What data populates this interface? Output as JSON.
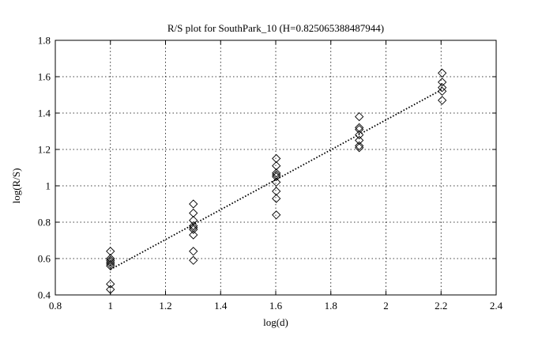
{
  "chart_data": {
    "type": "scatter",
    "title": "R/S plot for SouthPark_10 (H=0.825065388487944)",
    "xlabel": "log(d)",
    "ylabel": "log(R/S)",
    "xlim": [
      0.8,
      2.4
    ],
    "ylim": [
      0.4,
      1.8
    ],
    "xticks": [
      0.8,
      1,
      1.2,
      1.4,
      1.6,
      1.8,
      2,
      2.2,
      2.4
    ],
    "xtick_labels": [
      "0.8",
      "1",
      "1.2",
      "1.4",
      "1.6",
      "1.8",
      "2",
      "2.2",
      "2.4"
    ],
    "yticks": [
      0.4,
      0.6,
      0.8,
      1,
      1.2,
      1.4,
      1.6,
      1.8
    ],
    "ytick_labels": [
      "0.4",
      "0.6",
      "0.8",
      "1",
      "1.2",
      "1.4",
      "1.6",
      "1.8"
    ],
    "grid": true,
    "marker": "diamond",
    "points": [
      {
        "x": 1.0,
        "y": 0.64
      },
      {
        "x": 1.0,
        "y": 0.6
      },
      {
        "x": 1.0,
        "y": 0.59
      },
      {
        "x": 1.0,
        "y": 0.58
      },
      {
        "x": 1.0,
        "y": 0.57
      },
      {
        "x": 1.0,
        "y": 0.56
      },
      {
        "x": 1.0,
        "y": 0.46
      },
      {
        "x": 1.0,
        "y": 0.43
      },
      {
        "x": 1.301,
        "y": 0.9
      },
      {
        "x": 1.301,
        "y": 0.85
      },
      {
        "x": 1.301,
        "y": 0.81
      },
      {
        "x": 1.301,
        "y": 0.78
      },
      {
        "x": 1.301,
        "y": 0.77
      },
      {
        "x": 1.301,
        "y": 0.76
      },
      {
        "x": 1.301,
        "y": 0.73
      },
      {
        "x": 1.301,
        "y": 0.64
      },
      {
        "x": 1.301,
        "y": 0.59
      },
      {
        "x": 1.602,
        "y": 1.15
      },
      {
        "x": 1.602,
        "y": 1.11
      },
      {
        "x": 1.602,
        "y": 1.07
      },
      {
        "x": 1.602,
        "y": 1.06
      },
      {
        "x": 1.602,
        "y": 1.05
      },
      {
        "x": 1.602,
        "y": 1.02
      },
      {
        "x": 1.602,
        "y": 0.97
      },
      {
        "x": 1.602,
        "y": 0.93
      },
      {
        "x": 1.602,
        "y": 0.84
      },
      {
        "x": 1.903,
        "y": 1.38
      },
      {
        "x": 1.903,
        "y": 1.32
      },
      {
        "x": 1.903,
        "y": 1.31
      },
      {
        "x": 1.903,
        "y": 1.28
      },
      {
        "x": 1.903,
        "y": 1.25
      },
      {
        "x": 1.903,
        "y": 1.22
      },
      {
        "x": 1.903,
        "y": 1.21
      },
      {
        "x": 2.204,
        "y": 1.62
      },
      {
        "x": 2.204,
        "y": 1.57
      },
      {
        "x": 2.204,
        "y": 1.54
      },
      {
        "x": 2.204,
        "y": 1.52
      },
      {
        "x": 2.204,
        "y": 1.47
      }
    ],
    "fit_line": {
      "x": [
        1.0,
        2.204
      ],
      "y": [
        0.54,
        1.53
      ]
    }
  }
}
